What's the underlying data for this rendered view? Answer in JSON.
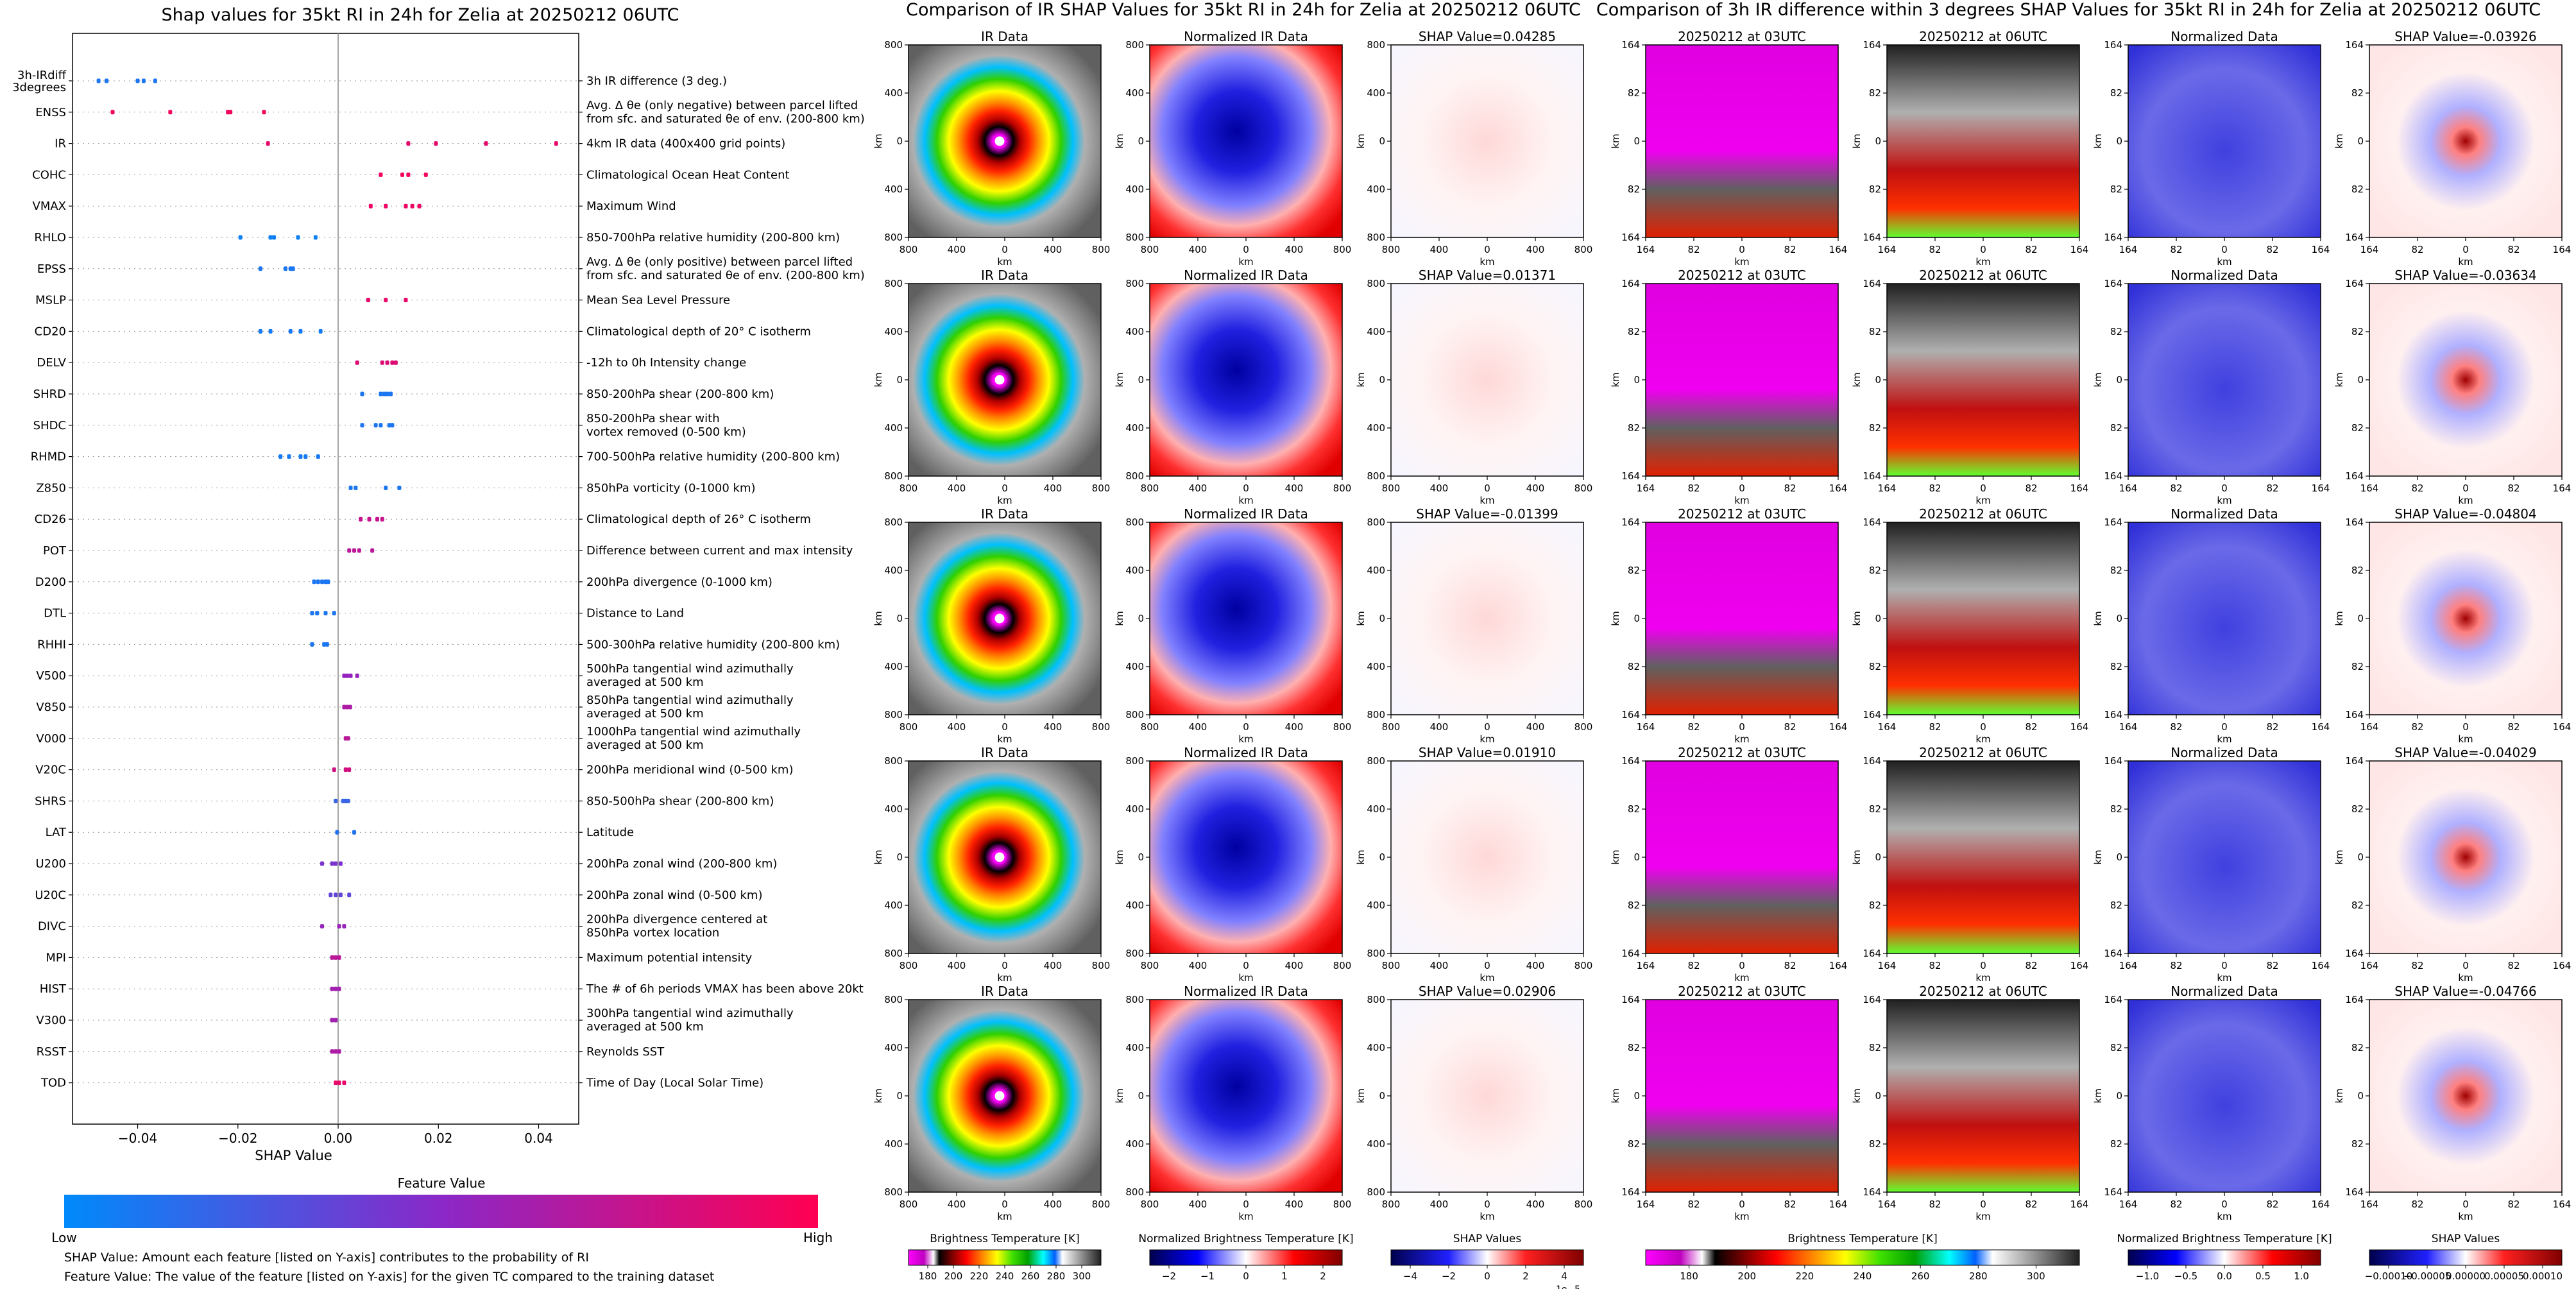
{
  "figure": {
    "left_title": "Shap values for 35kt RI in 24h for Zelia at 20250212 06UTC",
    "middle_title": "Comparison of IR SHAP Values for 35kt RI in 24h for Zelia at 20250212 06UTC",
    "right_title": "Comparison of 3h IR difference within 3 degrees SHAP Values for 35kt RI in 24h for Zelia at 20250212 06UTC",
    "footnote1": "SHAP Value: Amount each feature [listed on Y-axis] contributes to the probability of RI",
    "footnote2": "Feature Value: The value of the feature [listed on Y-axis] for the given TC compared to the training dataset"
  },
  "beeswarm": {
    "xlabel": "SHAP Value",
    "xticks": [
      -0.04,
      -0.02,
      0.0,
      0.02,
      0.04
    ],
    "xtick_labels": [
      "−0.04",
      "−0.02",
      "0.00",
      "0.02",
      "0.04"
    ],
    "colorbar_title": "Feature Value",
    "colorbar_low": "Low",
    "colorbar_high": "High",
    "color_low": "#1e88e5",
    "color_high": "#ff0052"
  },
  "chart_data": [
    {
      "type": "scatter",
      "subtype": "beeswarm",
      "title": "Shap values for 35kt RI in 24h for Zelia at 20250212 06UTC",
      "xlabel": "SHAP Value",
      "xlim": [
        -0.053,
        0.048
      ],
      "features": [
        {
          "code": "3h-IRdiff 3degrees",
          "desc": "3h IR difference (3 deg.)",
          "values": [
            -0.0478,
            -0.0462,
            -0.04,
            -0.0388,
            -0.0365
          ],
          "fv": [
            0.1,
            0.1,
            0.1,
            0.1,
            0.1
          ]
        },
        {
          "code": "ENSS",
          "desc": "Avg. Δ θe (only negative) between parcel lifted\nfrom sfc. and saturated θe of env. (200-800 km)",
          "values": [
            -0.045,
            -0.0335,
            -0.022,
            -0.0215,
            -0.0148
          ],
          "fv": [
            0.95,
            0.95,
            0.95,
            0.95,
            0.95
          ]
        },
        {
          "code": "IR",
          "desc": "4km IR data (400x400 grid points)",
          "values": [
            -0.014,
            0.014,
            0.0195,
            0.0295,
            0.0435
          ],
          "fv": [
            0.9,
            0.9,
            0.9,
            0.9,
            0.9
          ]
        },
        {
          "code": "COHC",
          "desc": "Climatological Ocean Heat Content",
          "values": [
            0.0085,
            0.0128,
            0.014,
            0.0175
          ],
          "fv": [
            0.95,
            0.95,
            0.95,
            0.95
          ]
        },
        {
          "code": "VMAX",
          "desc": "Maximum Wind",
          "values": [
            0.0065,
            0.0095,
            0.0135,
            0.0148,
            0.0162
          ],
          "fv": [
            0.92,
            0.92,
            0.92,
            0.92,
            0.92
          ]
        },
        {
          "code": "RHLO",
          "desc": "850-700hPa relative humidity (200-800 km)",
          "values": [
            -0.0195,
            -0.0135,
            -0.0128,
            -0.008,
            -0.0045
          ],
          "fv": [
            0.05,
            0.05,
            0.05,
            0.05,
            0.05
          ]
        },
        {
          "code": "EPSS",
          "desc": "Avg. Δ θe (only positive) between parcel lifted\nfrom sfc. and saturated θe of env. (200-800 km)",
          "values": [
            -0.0155,
            -0.0105,
            -0.0095,
            -0.009
          ],
          "fv": [
            0.1,
            0.1,
            0.1,
            0.1
          ]
        },
        {
          "code": "MSLP",
          "desc": "Mean Sea Level Pressure",
          "values": [
            0.006,
            0.0095,
            0.0135
          ],
          "fv": [
            0.9,
            0.9,
            0.9
          ]
        },
        {
          "code": "CD20",
          "desc": "Climatological depth of 20° C isotherm",
          "values": [
            -0.0155,
            -0.0135,
            -0.0095,
            -0.0075,
            -0.0035
          ],
          "fv": [
            0.08,
            0.08,
            0.08,
            0.08,
            0.08
          ]
        },
        {
          "code": "DELV",
          "desc": "-12h to 0h Intensity change",
          "values": [
            0.0038,
            0.0088,
            0.0098,
            0.0108,
            0.0115
          ],
          "fv": [
            0.85,
            0.85,
            0.85,
            0.85,
            0.85
          ]
        },
        {
          "code": "SHRD",
          "desc": "850-200hPa shear (200-800 km)",
          "values": [
            0.0048,
            0.0085,
            0.0092,
            0.0098,
            0.0105
          ],
          "fv": [
            0.1,
            0.1,
            0.1,
            0.1,
            0.1
          ]
        },
        {
          "code": "SHDC",
          "desc": "850-200hPa shear with\nvortex removed (0-500 km)",
          "values": [
            0.0048,
            0.0075,
            0.0085,
            0.0102,
            0.0108
          ],
          "fv": [
            0.1,
            0.1,
            0.1,
            0.1,
            0.1
          ]
        },
        {
          "code": "RHMD",
          "desc": "700-500hPa relative humidity (200-800 km)",
          "values": [
            -0.0115,
            -0.0098,
            -0.0075,
            -0.0065,
            -0.004
          ],
          "fv": [
            0.08,
            0.08,
            0.08,
            0.08,
            0.08
          ]
        },
        {
          "code": "Z850",
          "desc": "850hPa vorticity (0-1000 km)",
          "values": [
            0.0025,
            0.0035,
            0.0095,
            0.0122
          ],
          "fv": [
            0.1,
            0.1,
            0.1,
            0.1
          ]
        },
        {
          "code": "CD26",
          "desc": "Climatological depth of 26° C isotherm",
          "values": [
            0.0045,
            0.0062,
            0.0078,
            0.0088
          ],
          "fv": [
            0.75,
            0.75,
            0.75,
            0.75
          ]
        },
        {
          "code": "POT",
          "desc": "Difference between current and max intensity",
          "values": [
            0.0022,
            0.0032,
            0.0042,
            0.0068
          ],
          "fv": [
            0.7,
            0.7,
            0.7,
            0.7
          ]
        },
        {
          "code": "D200",
          "desc": "200hPa divergence (0-1000 km)",
          "values": [
            -0.0048,
            -0.004,
            -0.0032,
            -0.0025,
            -0.002
          ],
          "fv": [
            0.1,
            0.1,
            0.1,
            0.1,
            0.1
          ]
        },
        {
          "code": "DTL",
          "desc": "Distance to Land",
          "values": [
            -0.0052,
            -0.0042,
            -0.0025,
            -0.0008
          ],
          "fv": [
            0.1,
            0.1,
            0.1,
            0.1
          ]
        },
        {
          "code": "RHHI",
          "desc": "500-300hPa relative humidity (200-800 km)",
          "values": [
            -0.0052,
            -0.0028,
            -0.0022
          ],
          "fv": [
            0.1,
            0.1,
            0.1
          ]
        },
        {
          "code": "V500",
          "desc": "500hPa tangential wind azimuthally\naveraged at 500 km",
          "values": [
            0.0012,
            0.0018,
            0.0025,
            0.0038
          ],
          "fv": [
            0.55,
            0.55,
            0.55,
            0.55
          ]
        },
        {
          "code": "V850",
          "desc": "850hPa tangential wind azimuthally\naveraged at 500 km",
          "values": [
            0.0012,
            0.0018,
            0.0024
          ],
          "fv": [
            0.65,
            0.65,
            0.65
          ]
        },
        {
          "code": "V000",
          "desc": "1000hPa tangential wind azimuthally\naveraged at 500 km",
          "values": [
            0.0015,
            0.002
          ],
          "fv": [
            0.7,
            0.7
          ]
        },
        {
          "code": "V20C",
          "desc": "200hPa meridional wind (0-500 km)",
          "values": [
            -0.0008,
            0.0015,
            0.0022
          ],
          "fv": [
            0.8,
            0.8,
            0.8
          ]
        },
        {
          "code": "SHRS",
          "desc": "850-500hPa shear (200-800 km)",
          "values": [
            -0.0005,
            0.001,
            0.0015,
            0.002
          ],
          "fv": [
            0.2,
            0.2,
            0.2,
            0.2
          ]
        },
        {
          "code": "LAT",
          "desc": "Latitude",
          "values": [
            -0.0002,
            0.0032
          ],
          "fv": [
            0.12,
            0.12
          ]
        },
        {
          "code": "U200",
          "desc": "200hPa zonal wind (200-800 km)",
          "values": [
            -0.0032,
            -0.0012,
            -0.0005,
            0.0005
          ],
          "fv": [
            0.45,
            0.45,
            0.45,
            0.45
          ]
        },
        {
          "code": "U20C",
          "desc": "200hPa zonal wind (0-500 km)",
          "values": [
            -0.0015,
            -0.0005,
            0.0005,
            0.0022
          ],
          "fv": [
            0.35,
            0.35,
            0.35,
            0.35
          ]
        },
        {
          "code": "DIVC",
          "desc": "200hPa divergence centered at\n850hPa vortex location",
          "values": [
            -0.0032,
            0.0002,
            0.0012
          ],
          "fv": [
            0.55,
            0.55,
            0.55
          ]
        },
        {
          "code": "MPI",
          "desc": "Maximum potential intensity",
          "values": [
            -0.0012,
            -0.0005,
            0.0002
          ],
          "fv": [
            0.7,
            0.7,
            0.7
          ]
        },
        {
          "code": "HIST",
          "desc": "The # of 6h periods VMAX has been above 20kt",
          "values": [
            -0.0012,
            -0.0005,
            0.0002
          ],
          "fv": [
            0.6,
            0.6,
            0.6
          ]
        },
        {
          "code": "V300",
          "desc": "300hPa tangential wind azimuthally\naveraged at 500 km",
          "values": [
            -0.0012,
            -0.0005
          ],
          "fv": [
            0.6,
            0.6
          ]
        },
        {
          "code": "RSST",
          "desc": "Reynolds SST",
          "values": [
            -0.0012,
            -0.0005,
            0.0002
          ],
          "fv": [
            0.65,
            0.65,
            0.65
          ]
        },
        {
          "code": "TOD",
          "desc": "Time of Day (Local Solar Time)",
          "values": [
            -0.0005,
            0.0002,
            0.0012
          ],
          "fv": [
            0.9,
            0.9,
            0.9
          ]
        }
      ]
    },
    {
      "type": "heatmap",
      "title": "Comparison of IR SHAP Values for 35kt RI in 24h for Zelia at 20250212 06UTC",
      "column_titles": [
        "IR Data",
        "Normalized IR Data"
      ],
      "shap_titles": [
        "SHAP Value=0.04285",
        "SHAP Value=0.01371",
        "SHAP Value=-0.01399",
        "SHAP Value=0.01910",
        "SHAP Value=0.02906"
      ],
      "xlabel": "km",
      "ylabel": "km",
      "tick_labels": [
        "800",
        "400",
        "0",
        "400",
        "800"
      ],
      "colorbars": [
        {
          "label": "Brightness Temperature [K]",
          "ticks": [
            "180",
            "200",
            "220",
            "240",
            "260",
            "280",
            "300"
          ]
        },
        {
          "label": "Normalized Brightness Temperature [K]",
          "ticks": [
            "−2",
            "−1",
            "0",
            "1",
            "2"
          ]
        },
        {
          "label": "SHAP Values",
          "ticks": [
            "−4",
            "−2",
            "0",
            "2",
            "4"
          ],
          "exponent": "1e−5"
        }
      ]
    },
    {
      "type": "heatmap",
      "title": "Comparison of 3h IR difference within 3 degrees SHAP Values for 35kt RI in 24h for Zelia at 20250212 06UTC",
      "column_titles": [
        "20250212 at 03UTC",
        "20250212 at 06UTC",
        "Normalized Data"
      ],
      "shap_titles": [
        "SHAP Value=-0.03926",
        "SHAP Value=-0.03634",
        "SHAP Value=-0.04804",
        "SHAP Value=-0.04029",
        "SHAP Value=-0.04766"
      ],
      "xlabel": "km",
      "ylabel": "km",
      "tick_labels": [
        "164",
        "82",
        "0",
        "82",
        "164"
      ],
      "colorbars": [
        {
          "label": "Brightness Temperature [K]",
          "ticks": [
            "180",
            "200",
            "220",
            "240",
            "260",
            "280",
            "300"
          ]
        },
        {
          "label": "Normalized Brightness Temperature [K]",
          "ticks": [
            "−1.0",
            "−0.5",
            "0.0",
            "0.5",
            "1.0"
          ]
        },
        {
          "label": "SHAP Values",
          "ticks": [
            "−0.00010",
            "−0.00005",
            "0.00000",
            "0.00005",
            "0.00010"
          ]
        }
      ]
    }
  ]
}
